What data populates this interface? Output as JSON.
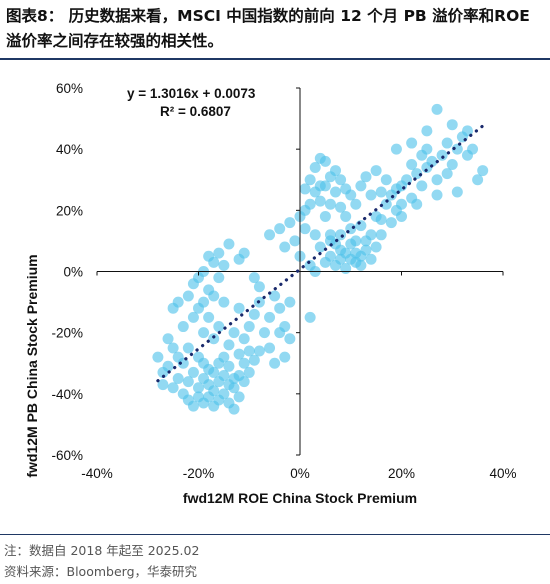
{
  "figure": {
    "title": "图表8：   历史数据来看，MSCI 中国指数的前向 12 个月 PB 溢价率和ROE 溢价率之间存在较强的相关性。",
    "note": "注：数据自 2018 年起至 2025.02",
    "source": "资料来源：Bloomberg，华泰研究"
  },
  "colors": {
    "points": "#4fc1ea",
    "trendline": "#1a2a6c",
    "rule": "#1f3864"
  },
  "chart_data": {
    "type": "scatter",
    "title": "",
    "xlabel": "fwd12M ROE China Stock Premium",
    "ylabel": "fwd12M PB China Stock Premium",
    "xlim": [
      -0.4,
      0.4
    ],
    "ylim": [
      -0.6,
      0.6
    ],
    "x_ticks": [
      "-40%",
      "-20%",
      "0%",
      "20%",
      "40%"
    ],
    "y_ticks": [
      "60%",
      "40%",
      "20%",
      "0%",
      "-20%",
      "-40%",
      "-60%"
    ],
    "annotation": {
      "equation": "y = 1.3016x + 0.0073",
      "r2": "R² = 0.6807"
    },
    "trendline": {
      "slope": 1.3016,
      "intercept": 0.0073,
      "x_range": [
        -0.28,
        0.36
      ]
    },
    "points": [
      [
        -0.28,
        -0.28
      ],
      [
        -0.27,
        -0.33
      ],
      [
        -0.27,
        -0.37
      ],
      [
        -0.26,
        -0.22
      ],
      [
        -0.26,
        -0.31
      ],
      [
        -0.25,
        -0.38
      ],
      [
        -0.25,
        -0.12
      ],
      [
        -0.25,
        -0.25
      ],
      [
        -0.24,
        -0.1
      ],
      [
        -0.24,
        -0.28
      ],
      [
        -0.24,
        -0.35
      ],
      [
        -0.23,
        -0.4
      ],
      [
        -0.23,
        -0.18
      ],
      [
        -0.23,
        -0.3
      ],
      [
        -0.22,
        -0.42
      ],
      [
        -0.22,
        -0.36
      ],
      [
        -0.22,
        -0.25
      ],
      [
        -0.22,
        -0.08
      ],
      [
        -0.21,
        -0.44
      ],
      [
        -0.21,
        -0.33
      ],
      [
        -0.21,
        -0.15
      ],
      [
        -0.21,
        -0.04
      ],
      [
        -0.2,
        -0.41
      ],
      [
        -0.2,
        -0.38
      ],
      [
        -0.2,
        -0.28
      ],
      [
        -0.2,
        -0.12
      ],
      [
        -0.2,
        -0.02
      ],
      [
        -0.19,
        -0.43
      ],
      [
        -0.19,
        -0.35
      ],
      [
        -0.19,
        -0.3
      ],
      [
        -0.19,
        -0.2
      ],
      [
        -0.19,
        -0.1
      ],
      [
        -0.18,
        -0.41
      ],
      [
        -0.18,
        -0.37
      ],
      [
        -0.18,
        -0.32
      ],
      [
        -0.18,
        -0.15
      ],
      [
        -0.18,
        -0.06
      ],
      [
        -0.17,
        -0.44
      ],
      [
        -0.17,
        -0.39
      ],
      [
        -0.17,
        -0.33
      ],
      [
        -0.17,
        -0.22
      ],
      [
        -0.17,
        -0.08
      ],
      [
        -0.16,
        -0.42
      ],
      [
        -0.16,
        -0.36
      ],
      [
        -0.16,
        -0.3
      ],
      [
        -0.16,
        -0.18
      ],
      [
        -0.16,
        -0.02
      ],
      [
        -0.15,
        -0.4
      ],
      [
        -0.15,
        -0.34
      ],
      [
        -0.15,
        -0.28
      ],
      [
        -0.15,
        -0.1
      ],
      [
        -0.15,
        0.02
      ],
      [
        -0.14,
        -0.43
      ],
      [
        -0.14,
        -0.37
      ],
      [
        -0.14,
        -0.31
      ],
      [
        -0.14,
        -0.24
      ],
      [
        -0.13,
        -0.45
      ],
      [
        -0.13,
        -0.38
      ],
      [
        -0.13,
        -0.35
      ],
      [
        -0.13,
        -0.2
      ],
      [
        -0.12,
        -0.41
      ],
      [
        -0.12,
        -0.34
      ],
      [
        -0.12,
        -0.27
      ],
      [
        -0.12,
        -0.12
      ],
      [
        -0.11,
        -0.36
      ],
      [
        -0.11,
        -0.3
      ],
      [
        -0.11,
        -0.22
      ],
      [
        -0.1,
        -0.33
      ],
      [
        -0.1,
        -0.26
      ],
      [
        -0.1,
        -0.18
      ],
      [
        -0.09,
        -0.29
      ],
      [
        -0.09,
        -0.14
      ],
      [
        -0.08,
        -0.26
      ],
      [
        -0.08,
        -0.1
      ],
      [
        -0.07,
        -0.2
      ],
      [
        -0.06,
        -0.15
      ],
      [
        -0.06,
        -0.25
      ],
      [
        -0.05,
        -0.08
      ],
      [
        -0.05,
        -0.3
      ],
      [
        -0.04,
        -0.2
      ],
      [
        -0.04,
        -0.12
      ],
      [
        -0.03,
        -0.18
      ],
      [
        -0.03,
        -0.28
      ],
      [
        -0.02,
        -0.1
      ],
      [
        -0.02,
        -0.22
      ],
      [
        -0.19,
        0.0
      ],
      [
        -0.18,
        0.05
      ],
      [
        -0.17,
        0.03
      ],
      [
        -0.16,
        0.06
      ],
      [
        -0.14,
        0.09
      ],
      [
        -0.12,
        0.04
      ],
      [
        -0.11,
        0.06
      ],
      [
        -0.09,
        -0.02
      ],
      [
        -0.08,
        -0.05
      ],
      [
        -0.06,
        0.12
      ],
      [
        -0.04,
        0.14
      ],
      [
        -0.03,
        0.08
      ],
      [
        -0.02,
        0.16
      ],
      [
        -0.01,
        0.1
      ],
      [
        0.0,
        0.18
      ],
      [
        0.0,
        0.05
      ],
      [
        0.01,
        0.2
      ],
      [
        0.01,
        0.14
      ],
      [
        0.01,
        0.27
      ],
      [
        0.02,
        0.22
      ],
      [
        0.02,
        0.3
      ],
      [
        0.02,
        -0.15
      ],
      [
        0.03,
        0.26
      ],
      [
        0.03,
        0.34
      ],
      [
        0.03,
        0.12
      ],
      [
        0.04,
        0.23
      ],
      [
        0.04,
        0.37
      ],
      [
        0.04,
        0.08
      ],
      [
        0.05,
        0.28
      ],
      [
        0.05,
        0.36
      ],
      [
        0.05,
        0.18
      ],
      [
        0.05,
        0.03
      ],
      [
        0.06,
        0.31
      ],
      [
        0.06,
        0.22
      ],
      [
        0.06,
        0.12
      ],
      [
        0.06,
        0.05
      ],
      [
        0.07,
        0.33
      ],
      [
        0.07,
        0.26
      ],
      [
        0.07,
        0.09
      ],
      [
        0.07,
        0.02
      ],
      [
        0.08,
        0.3
      ],
      [
        0.08,
        0.21
      ],
      [
        0.08,
        0.07
      ],
      [
        0.08,
        0.04
      ],
      [
        0.09,
        0.27
      ],
      [
        0.09,
        0.18
      ],
      [
        0.09,
        0.06
      ],
      [
        0.09,
        0.01
      ],
      [
        0.1,
        0.25
      ],
      [
        0.1,
        0.14
      ],
      [
        0.1,
        0.04
      ],
      [
        0.1,
        0.09
      ],
      [
        0.11,
        0.22
      ],
      [
        0.11,
        0.06
      ],
      [
        0.11,
        0.03
      ],
      [
        0.12,
        0.28
      ],
      [
        0.12,
        0.15
      ],
      [
        0.12,
        0.05
      ],
      [
        0.13,
        0.31
      ],
      [
        0.13,
        0.1
      ],
      [
        0.13,
        0.07
      ],
      [
        0.14,
        0.25
      ],
      [
        0.14,
        0.04
      ],
      [
        0.15,
        0.33
      ],
      [
        0.15,
        0.18
      ],
      [
        0.15,
        0.08
      ],
      [
        0.16,
        0.26
      ],
      [
        0.16,
        0.12
      ],
      [
        0.17,
        0.22
      ],
      [
        0.17,
        0.3
      ],
      [
        0.18,
        0.16
      ],
      [
        0.18,
        0.25
      ],
      [
        0.19,
        0.27
      ],
      [
        0.19,
        0.2
      ],
      [
        0.2,
        0.28
      ],
      [
        0.2,
        0.22
      ],
      [
        0.21,
        0.3
      ],
      [
        0.22,
        0.24
      ],
      [
        0.22,
        0.35
      ],
      [
        0.23,
        0.32
      ],
      [
        0.24,
        0.28
      ],
      [
        0.24,
        0.38
      ],
      [
        0.25,
        0.4
      ],
      [
        0.25,
        0.34
      ],
      [
        0.26,
        0.36
      ],
      [
        0.27,
        0.53
      ],
      [
        0.27,
        0.3
      ],
      [
        0.28,
        0.38
      ],
      [
        0.29,
        0.42
      ],
      [
        0.3,
        0.35
      ],
      [
        0.31,
        0.4
      ],
      [
        0.32,
        0.44
      ],
      [
        0.33,
        0.38
      ],
      [
        0.34,
        0.4
      ],
      [
        0.35,
        0.3
      ],
      [
        0.36,
        0.33
      ],
      [
        0.25,
        0.46
      ],
      [
        0.22,
        0.42
      ],
      [
        0.19,
        0.4
      ],
      [
        0.33,
        0.46
      ],
      [
        0.3,
        0.48
      ],
      [
        0.14,
        0.12
      ],
      [
        0.12,
        0.02
      ],
      [
        0.06,
        0.1
      ],
      [
        0.04,
        0.28
      ],
      [
        0.02,
        0.02
      ],
      [
        0.03,
        0.0
      ],
      [
        0.08,
        0.12
      ],
      [
        0.11,
        0.1
      ],
      [
        0.16,
        0.17
      ],
      [
        0.2,
        0.18
      ],
      [
        0.23,
        0.22
      ],
      [
        0.27,
        0.25
      ],
      [
        0.29,
        0.32
      ],
      [
        0.31,
        0.26
      ]
    ]
  }
}
